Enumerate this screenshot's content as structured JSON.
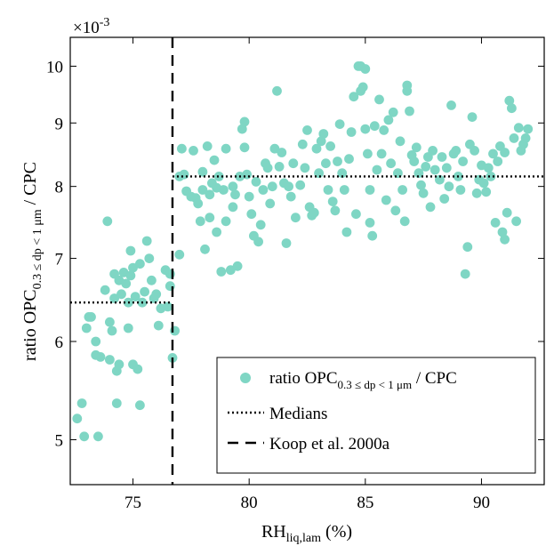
{
  "chart_data": {
    "type": "scatter",
    "xlabel": "RH",
    "xlabel_sub": "liq,lam",
    "xlabel_unit": " (%)",
    "ylabel": "ratio OPC",
    "ylabel_sub": "0.3 ≤ dp < 1 μm",
    "ylabel_tail": " / CPC",
    "y_multiplier": "×10",
    "y_multiplier_exp": "-3",
    "xlim": [
      72.3,
      92.7
    ],
    "ylim": [
      4.6,
      10.55
    ],
    "y_scale": "log",
    "x_ticks": [
      "75",
      "80",
      "85",
      "90"
    ],
    "y_ticks": [
      "5",
      "6",
      "7",
      "8",
      "9",
      "10"
    ],
    "grid": false,
    "legend_position": "bottom-right",
    "legend": [
      {
        "label": "ratio OPC",
        "sub": "0.3 ≤ dp < 1 μm",
        "tail": " / CPC",
        "style": "marker"
      },
      {
        "label": "Medians",
        "style": "dotted"
      },
      {
        "label": "Koop et al. 2000a",
        "style": "dashed"
      }
    ],
    "colors": {
      "points": "#7fd6c4",
      "lines": "#000000"
    },
    "threshold_x": 76.7,
    "medians": [
      {
        "x0": 72.3,
        "x1": 76.7,
        "y": 6.45
      },
      {
        "x0": 76.7,
        "x1": 92.7,
        "y": 8.15
      }
    ],
    "points": [
      [
        72.6,
        5.2
      ],
      [
        72.8,
        5.35
      ],
      [
        72.9,
        5.03
      ],
      [
        73.0,
        6.15
      ],
      [
        73.1,
        6.28
      ],
      [
        73.2,
        6.28
      ],
      [
        73.4,
        6.0
      ],
      [
        73.4,
        5.85
      ],
      [
        73.6,
        5.83
      ],
      [
        73.5,
        5.03
      ],
      [
        73.8,
        6.6
      ],
      [
        73.9,
        7.5
      ],
      [
        74.0,
        5.8
      ],
      [
        74.0,
        6.22
      ],
      [
        74.1,
        6.12
      ],
      [
        74.2,
        6.5
      ],
      [
        74.2,
        6.8
      ],
      [
        74.3,
        5.68
      ],
      [
        74.3,
        5.35
      ],
      [
        74.4,
        6.72
      ],
      [
        74.5,
        6.55
      ],
      [
        74.4,
        5.75
      ],
      [
        74.6,
        6.82
      ],
      [
        74.7,
        6.68
      ],
      [
        74.8,
        6.45
      ],
      [
        74.9,
        7.1
      ],
      [
        74.9,
        6.78
      ],
      [
        75.0,
        6.88
      ],
      [
        74.8,
        6.15
      ],
      [
        75.0,
        5.75
      ],
      [
        75.1,
        6.52
      ],
      [
        75.2,
        5.7
      ],
      [
        75.3,
        6.93
      ],
      [
        75.3,
        5.33
      ],
      [
        75.4,
        6.45
      ],
      [
        75.5,
        6.58
      ],
      [
        75.6,
        7.23
      ],
      [
        75.7,
        7.0
      ],
      [
        75.8,
        6.72
      ],
      [
        75.9,
        6.5
      ],
      [
        76.0,
        6.55
      ],
      [
        76.1,
        6.18
      ],
      [
        76.2,
        6.38
      ],
      [
        76.4,
        6.85
      ],
      [
        76.5,
        6.4
      ],
      [
        76.6,
        6.65
      ],
      [
        76.6,
        6.8
      ],
      [
        76.7,
        5.82
      ],
      [
        76.8,
        6.12
      ],
      [
        77.0,
        7.05
      ],
      [
        77.0,
        8.15
      ],
      [
        77.1,
        8.58
      ],
      [
        77.2,
        8.18
      ],
      [
        77.3,
        7.93
      ],
      [
        77.5,
        7.85
      ],
      [
        77.6,
        8.55
      ],
      [
        77.7,
        7.83
      ],
      [
        77.8,
        7.75
      ],
      [
        77.9,
        7.5
      ],
      [
        78.0,
        7.95
      ],
      [
        78.0,
        8.22
      ],
      [
        78.1,
        7.12
      ],
      [
        78.2,
        8.62
      ],
      [
        78.3,
        7.55
      ],
      [
        78.3,
        7.88
      ],
      [
        78.4,
        8.05
      ],
      [
        78.5,
        8.4
      ],
      [
        78.6,
        7.35
      ],
      [
        78.6,
        7.98
      ],
      [
        78.7,
        8.15
      ],
      [
        78.8,
        6.83
      ],
      [
        78.9,
        7.95
      ],
      [
        79.0,
        8.58
      ],
      [
        79.0,
        7.5
      ],
      [
        79.2,
        6.85
      ],
      [
        79.3,
        7.7
      ],
      [
        79.3,
        8.0
      ],
      [
        79.4,
        7.88
      ],
      [
        79.5,
        6.9
      ],
      [
        79.6,
        8.15
      ],
      [
        79.7,
        8.9
      ],
      [
        79.8,
        8.6
      ],
      [
        79.8,
        9.02
      ],
      [
        79.9,
        8.18
      ],
      [
        80.0,
        7.85
      ],
      [
        80.1,
        7.6
      ],
      [
        80.2,
        7.3
      ],
      [
        80.3,
        8.07
      ],
      [
        80.4,
        7.22
      ],
      [
        80.5,
        7.45
      ],
      [
        80.6,
        7.95
      ],
      [
        80.7,
        8.35
      ],
      [
        80.8,
        8.28
      ],
      [
        80.9,
        7.75
      ],
      [
        81.0,
        8.0
      ],
      [
        81.1,
        8.58
      ],
      [
        81.2,
        9.55
      ],
      [
        81.3,
        8.3
      ],
      [
        81.4,
        8.52
      ],
      [
        81.5,
        8.05
      ],
      [
        81.6,
        7.2
      ],
      [
        81.7,
        8.0
      ],
      [
        81.8,
        7.85
      ],
      [
        81.9,
        8.35
      ],
      [
        82.0,
        7.55
      ],
      [
        82.2,
        8.02
      ],
      [
        82.3,
        8.65
      ],
      [
        82.4,
        8.28
      ],
      [
        82.5,
        8.88
      ],
      [
        82.6,
        7.7
      ],
      [
        82.7,
        7.58
      ],
      [
        82.8,
        7.62
      ],
      [
        82.9,
        8.58
      ],
      [
        83.0,
        8.2
      ],
      [
        83.1,
        8.7
      ],
      [
        83.2,
        8.82
      ],
      [
        83.3,
        8.35
      ],
      [
        83.4,
        7.95
      ],
      [
        83.5,
        8.62
      ],
      [
        83.6,
        7.78
      ],
      [
        83.7,
        7.65
      ],
      [
        83.8,
        8.38
      ],
      [
        83.9,
        8.98
      ],
      [
        84.0,
        8.2
      ],
      [
        84.1,
        7.95
      ],
      [
        84.2,
        7.35
      ],
      [
        84.3,
        8.42
      ],
      [
        84.4,
        8.85
      ],
      [
        84.5,
        9.45
      ],
      [
        84.6,
        7.6
      ],
      [
        84.7,
        10.0
      ],
      [
        84.8,
        10.0
      ],
      [
        84.8,
        9.55
      ],
      [
        84.9,
        9.62
      ],
      [
        85.0,
        9.95
      ],
      [
        85.0,
        8.9
      ],
      [
        85.1,
        8.5
      ],
      [
        85.2,
        7.95
      ],
      [
        85.2,
        7.48
      ],
      [
        85.3,
        7.3
      ],
      [
        85.4,
        8.95
      ],
      [
        85.5,
        8.25
      ],
      [
        85.6,
        9.4
      ],
      [
        85.7,
        8.5
      ],
      [
        85.8,
        8.88
      ],
      [
        85.9,
        7.8
      ],
      [
        86.0,
        9.05
      ],
      [
        86.1,
        8.35
      ],
      [
        86.2,
        9.18
      ],
      [
        86.3,
        7.65
      ],
      [
        86.4,
        8.2
      ],
      [
        86.5,
        8.7
      ],
      [
        86.6,
        7.95
      ],
      [
        86.7,
        7.5
      ],
      [
        86.8,
        9.65
      ],
      [
        86.8,
        9.55
      ],
      [
        86.9,
        9.2
      ],
      [
        87.0,
        8.48
      ],
      [
        87.1,
        8.38
      ],
      [
        87.2,
        8.6
      ],
      [
        87.3,
        8.2
      ],
      [
        87.4,
        8.02
      ],
      [
        87.5,
        7.9
      ],
      [
        87.6,
        8.3
      ],
      [
        87.7,
        8.45
      ],
      [
        87.8,
        7.7
      ],
      [
        87.9,
        8.55
      ],
      [
        88.0,
        8.25
      ],
      [
        88.2,
        8.1
      ],
      [
        88.3,
        8.45
      ],
      [
        88.4,
        7.82
      ],
      [
        88.5,
        8.28
      ],
      [
        88.6,
        8.0
      ],
      [
        88.7,
        9.3
      ],
      [
        88.8,
        8.5
      ],
      [
        88.9,
        8.55
      ],
      [
        89.0,
        8.15
      ],
      [
        89.1,
        7.95
      ],
      [
        89.2,
        8.38
      ],
      [
        89.3,
        6.8
      ],
      [
        89.4,
        7.15
      ],
      [
        89.5,
        8.65
      ],
      [
        89.6,
        9.1
      ],
      [
        89.7,
        8.55
      ],
      [
        89.8,
        7.9
      ],
      [
        89.9,
        8.1
      ],
      [
        90.0,
        8.32
      ],
      [
        90.1,
        8.05
      ],
      [
        90.2,
        7.92
      ],
      [
        90.3,
        8.28
      ],
      [
        90.4,
        8.15
      ],
      [
        90.5,
        8.5
      ],
      [
        90.6,
        7.48
      ],
      [
        90.7,
        8.38
      ],
      [
        90.8,
        8.62
      ],
      [
        90.9,
        7.35
      ],
      [
        91.0,
        7.25
      ],
      [
        91.0,
        8.52
      ],
      [
        91.1,
        7.62
      ],
      [
        91.2,
        9.38
      ],
      [
        91.3,
        9.25
      ],
      [
        91.4,
        8.75
      ],
      [
        91.5,
        7.5
      ],
      [
        91.6,
        8.92
      ],
      [
        91.7,
        8.55
      ],
      [
        91.8,
        8.65
      ],
      [
        91.9,
        8.75
      ],
      [
        92.0,
        8.9
      ]
    ]
  }
}
